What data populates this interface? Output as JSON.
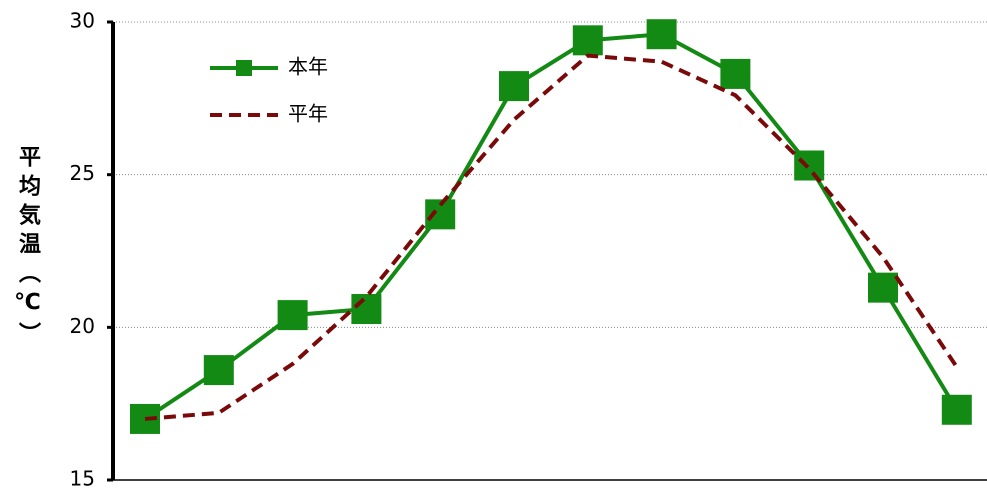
{
  "chart_data": {
    "type": "line",
    "y_label": "平均気温（℃）",
    "categories": [
      null,
      null,
      null,
      null,
      null,
      null,
      null,
      null,
      null,
      null,
      null,
      null
    ],
    "series": [
      {
        "name": "本年",
        "color": "#138a13",
        "style": "solid-square",
        "values": [
          17.0,
          18.6,
          20.4,
          20.6,
          23.7,
          27.9,
          29.4,
          29.6,
          28.3,
          25.3,
          21.3,
          17.3
        ]
      },
      {
        "name": "平年",
        "color": "#7a0a0a",
        "style": "dashed",
        "values": [
          17.0,
          17.2,
          18.8,
          21.0,
          24.0,
          26.8,
          28.9,
          28.7,
          27.6,
          25.2,
          22.3,
          18.7
        ]
      }
    ],
    "ylim": [
      15,
      30
    ],
    "yticks": [
      15,
      20,
      25,
      30
    ],
    "grid": true,
    "legend": "upper-left"
  }
}
